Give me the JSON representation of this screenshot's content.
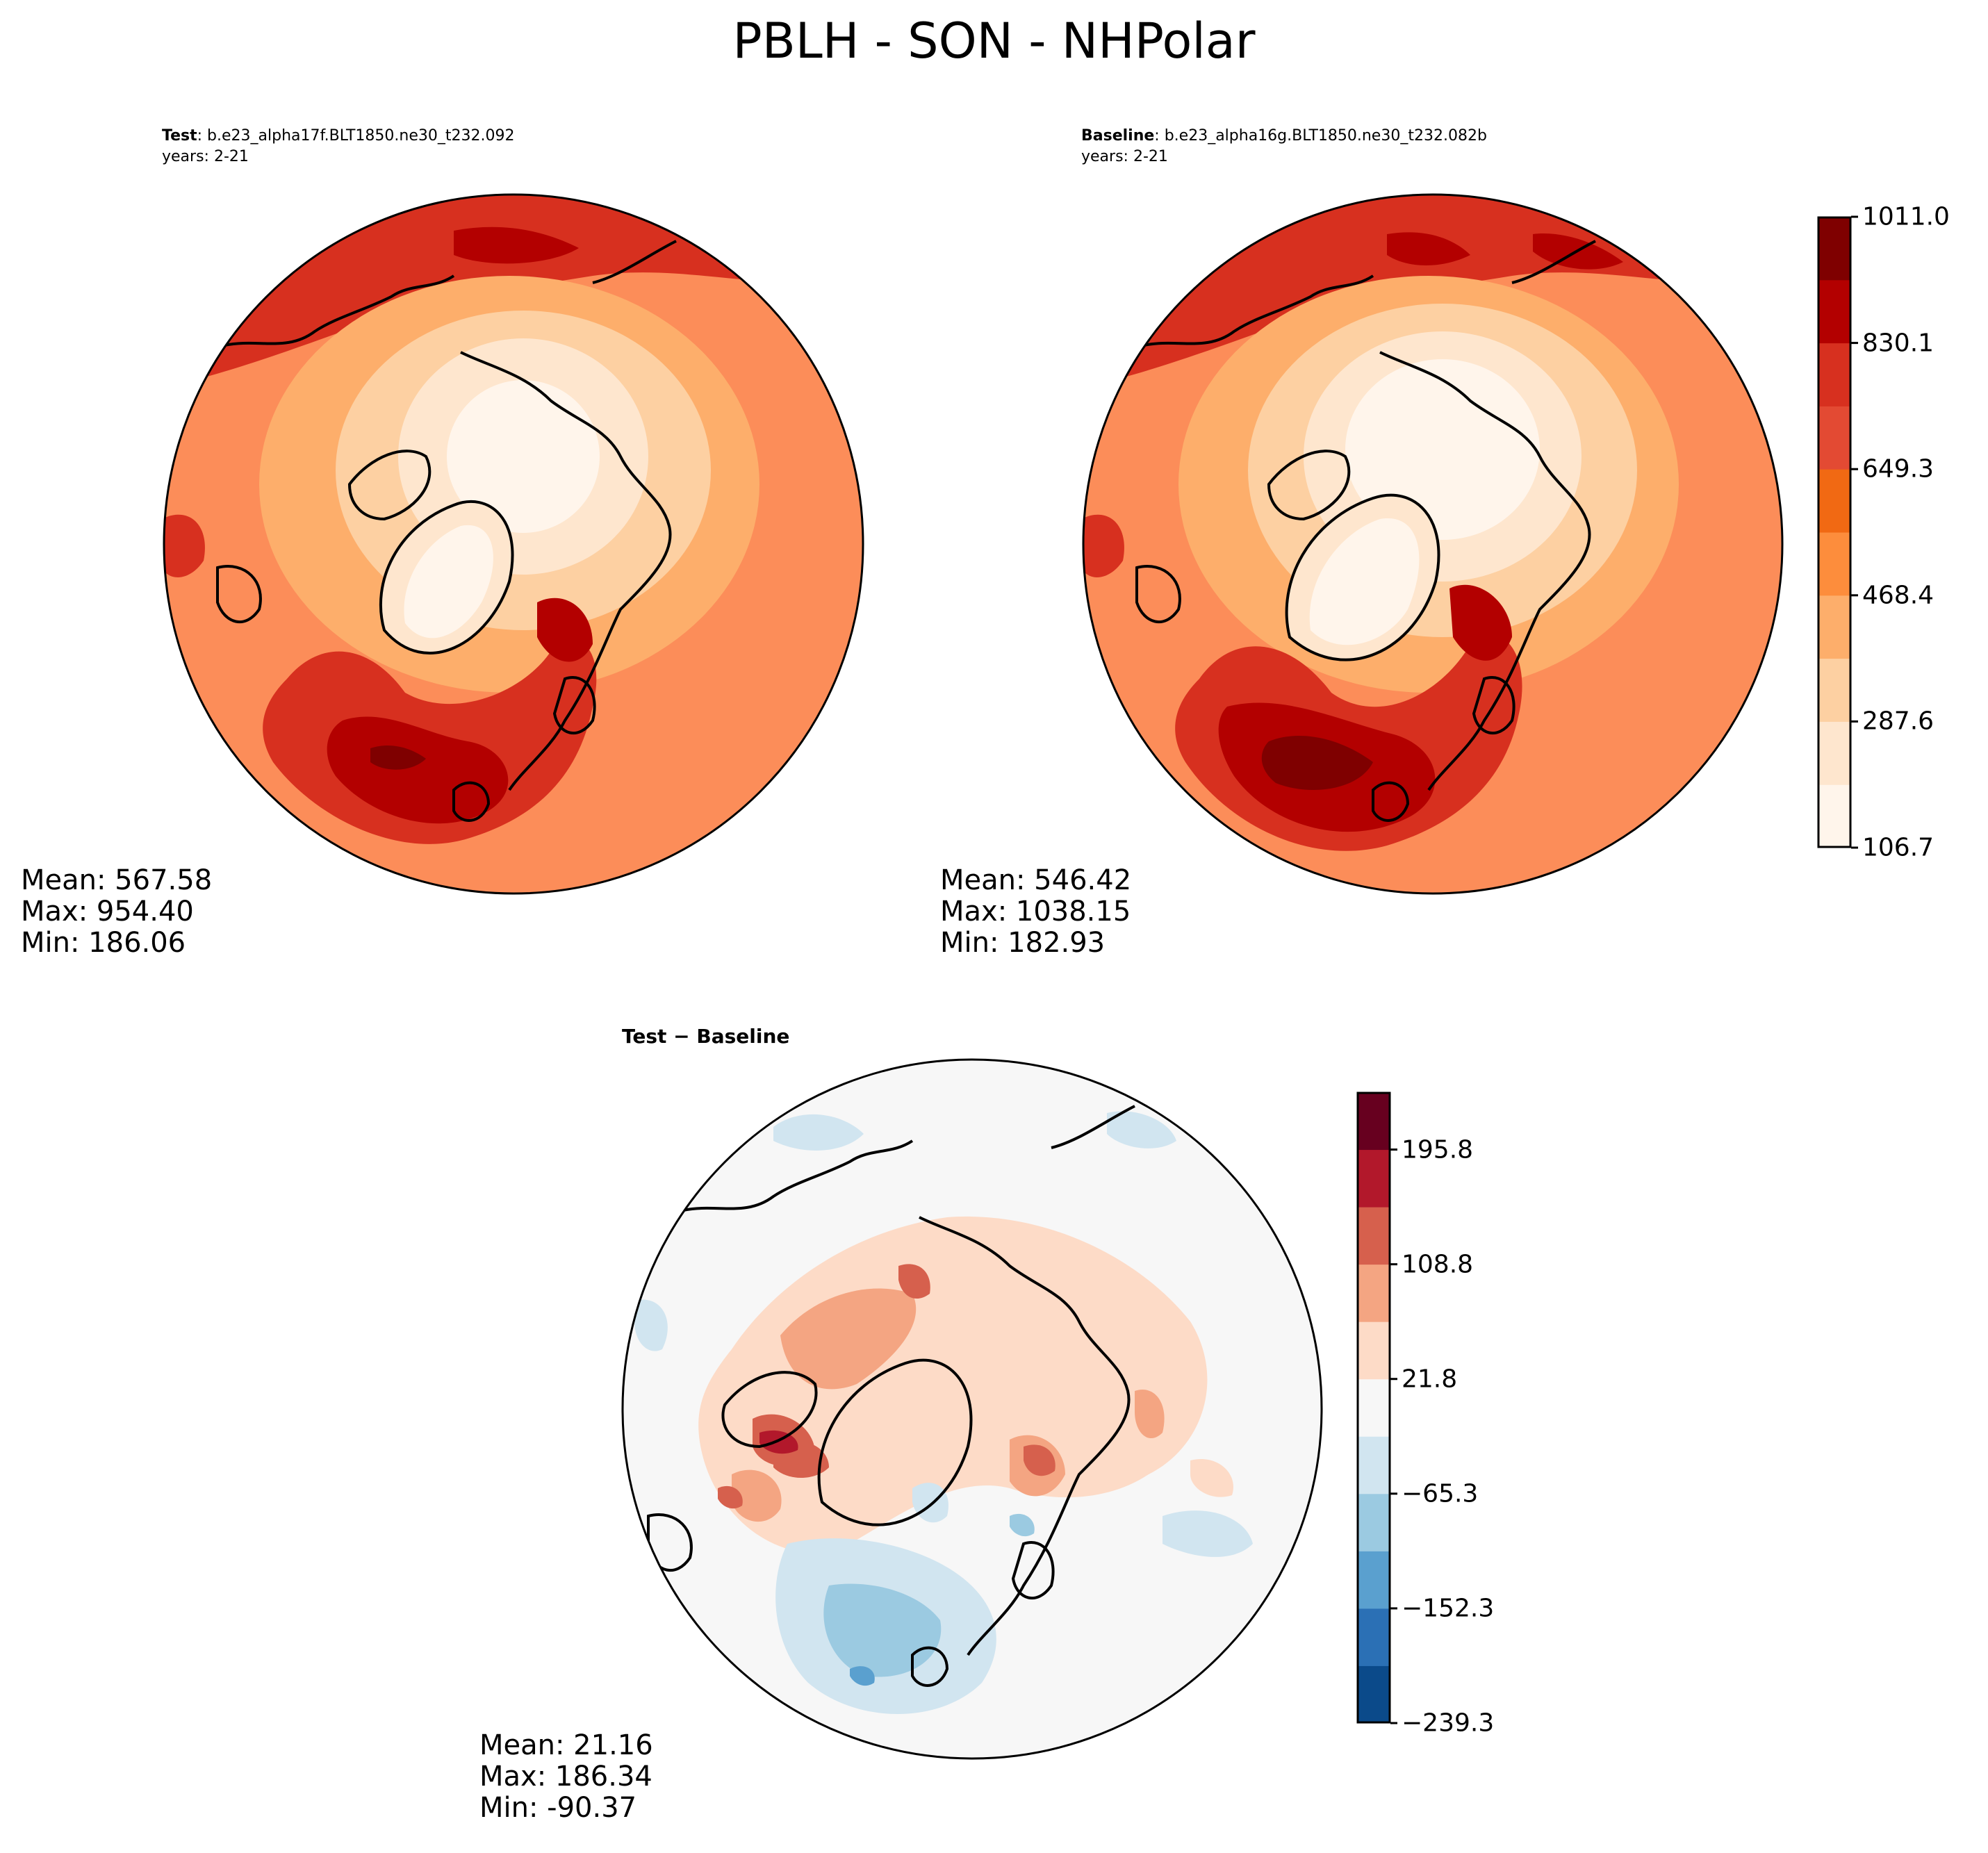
{
  "figure": {
    "title": "PBLH - SON - NHPolar"
  },
  "panels": {
    "test": {
      "label": "Test",
      "case": ": b.e23_alpha17f.BLT1850.ne30_t232.092",
      "years": "years: 2-21",
      "mean": "Mean: 567.58",
      "max": "Max: 954.40",
      "min": "Min: 186.06"
    },
    "baseline": {
      "label": "Baseline",
      "case": ": b.e23_alpha16g.BLT1850.ne30_t232.082b",
      "years": "years: 2-21",
      "mean": "Mean: 546.42",
      "max": "Max: 1038.15",
      "min": "Min: 182.93"
    },
    "diff": {
      "title": "Test − Baseline",
      "mean": "Mean: 21.16",
      "max": "Max: 186.34",
      "min": "Min: -90.37"
    }
  },
  "colorbars": {
    "main": {
      "tick_labels": [
        "106.7",
        "287.6",
        "468.4",
        "649.3",
        "830.1",
        "1011.0"
      ],
      "colors": [
        "#fff5eb",
        "#fee6ce",
        "#fdd0a2",
        "#fdae6b",
        "#fd8d3c",
        "#f16913",
        "#e34a33",
        "#d7301f",
        "#b30000",
        "#7f0000"
      ]
    },
    "diff": {
      "tick_labels": [
        "−239.3",
        "−152.3",
        "−65.3",
        "21.8",
        "108.8",
        "195.8"
      ],
      "colors": [
        "#0b4a8a",
        "#2b70b5",
        "#5aa0cf",
        "#9bcae1",
        "#d1e5f0",
        "#f7f7f7",
        "#fddbc7",
        "#f4a582",
        "#d6604d",
        "#b2182b",
        "#67001f"
      ]
    }
  },
  "chart_data": [
    {
      "type": "heatmap",
      "title": "Test : b.e23_alpha17f.BLT1850.ne30_t232.092",
      "projection": "north-polar-stereographic",
      "levels": [
        106.7,
        287.6,
        468.4,
        649.3,
        830.1,
        1011.0
      ],
      "stats": {
        "mean": 567.58,
        "max": 954.4,
        "min": 186.06
      }
    },
    {
      "type": "heatmap",
      "title": "Baseline : b.e23_alpha16g.BLT1850.ne30_t232.082b",
      "projection": "north-polar-stereographic",
      "levels": [
        106.7,
        287.6,
        468.4,
        649.3,
        830.1,
        1011.0
      ],
      "stats": {
        "mean": 546.42,
        "max": 1038.15,
        "min": 182.93
      }
    },
    {
      "type": "heatmap",
      "title": "Test − Baseline",
      "projection": "north-polar-stereographic",
      "levels": [
        -239.3,
        -152.3,
        -65.3,
        21.8,
        108.8,
        195.8
      ],
      "stats": {
        "mean": 21.16,
        "max": 186.34,
        "min": -90.37
      }
    }
  ]
}
